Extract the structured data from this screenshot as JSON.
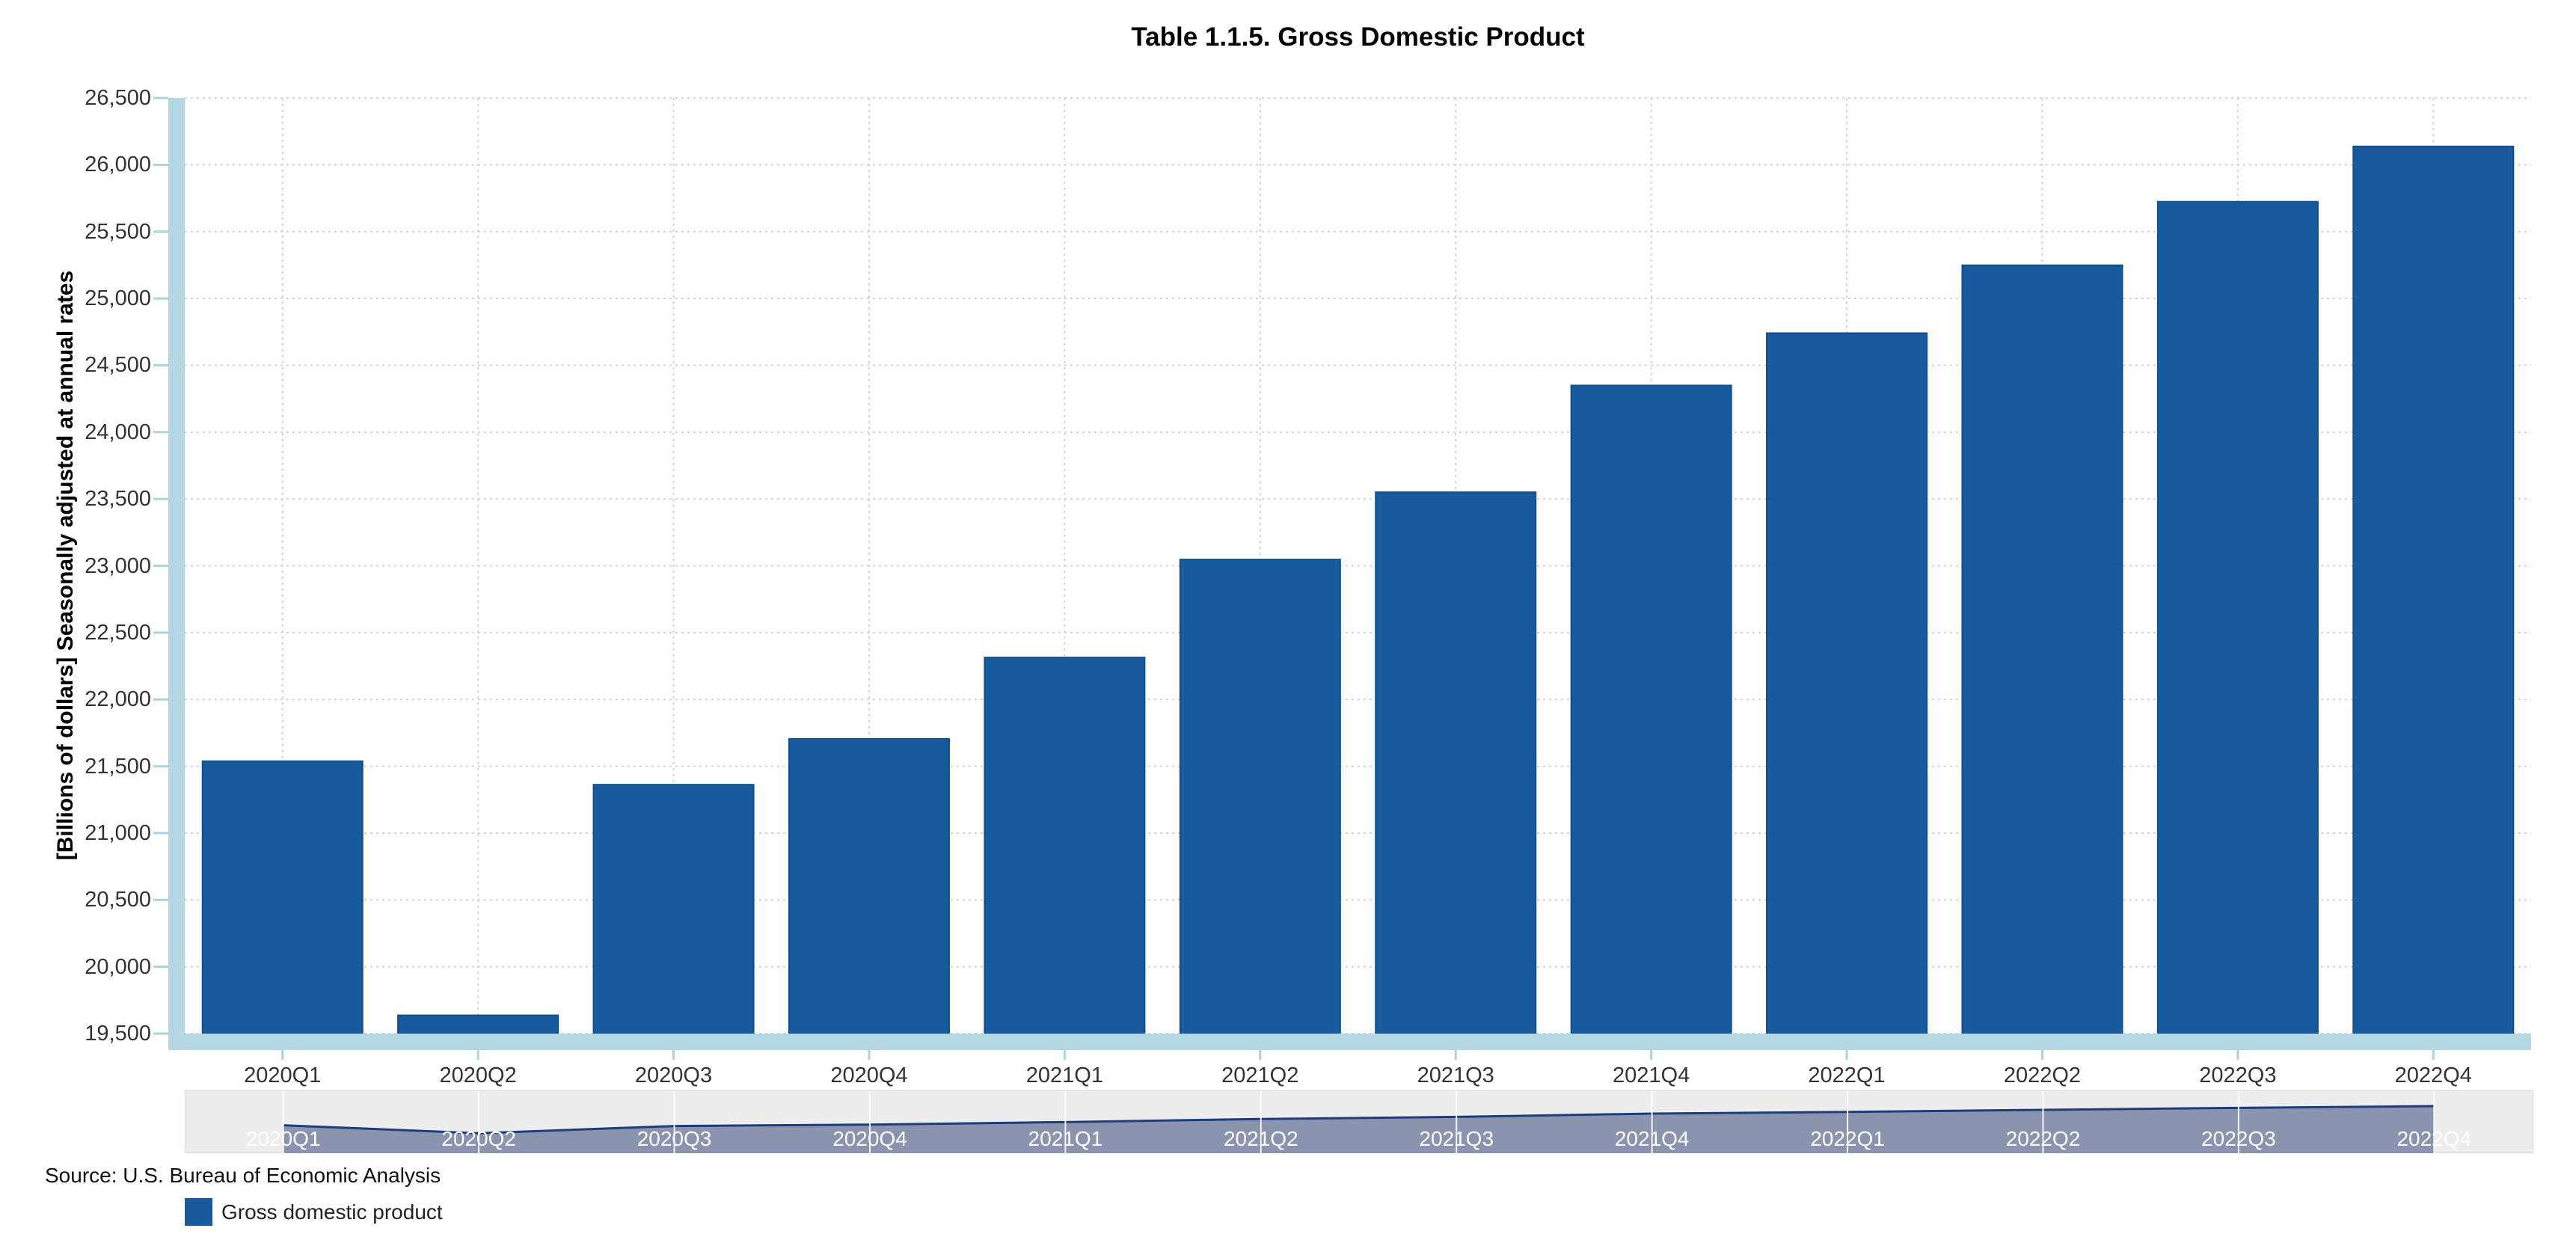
{
  "title": "Table 1.1.5. Gross Domestic Product",
  "y_axis": {
    "title": "[Billions of dollars] Seasonally adjusted at annual rates",
    "min": 19500,
    "max": 26500,
    "step": 500,
    "tick_labels": [
      "19,500",
      "20,000",
      "20,500",
      "21,000",
      "21,500",
      "22,000",
      "22,500",
      "23,000",
      "23,500",
      "24,000",
      "24,500",
      "25,000",
      "25,500",
      "26,000",
      "26,500"
    ]
  },
  "chart_data": {
    "type": "bar",
    "title": "Table 1.1.5. Gross Domestic Product",
    "xlabel": "",
    "ylabel": "[Billions of dollars] Seasonally adjusted at annual rates",
    "ylim": [
      19500,
      26500
    ],
    "grid": true,
    "legend_position": "bottom-left",
    "categories": [
      "2020Q1",
      "2020Q2",
      "2020Q3",
      "2020Q4",
      "2021Q1",
      "2021Q2",
      "2021Q3",
      "2021Q4",
      "2022Q1",
      "2022Q2",
      "2022Q3",
      "2022Q4"
    ],
    "series": [
      {
        "name": "Gross domestic product",
        "values": [
          21538.0,
          19636.7,
          21362.4,
          21704.7,
          22313.9,
          23046.9,
          23550.4,
          24349.1,
          24740.5,
          25248.5,
          25723.9,
          26137.5
        ]
      }
    ]
  },
  "navigator": {
    "labels": [
      "2020Q1",
      "2020Q2",
      "2020Q3",
      "2020Q4",
      "2021Q1",
      "2021Q2",
      "2021Q3",
      "2021Q4",
      "2022Q1",
      "2022Q2",
      "2022Q3",
      "2022Q4"
    ]
  },
  "source_text": "Source: U.S. Bureau of Economic Analysis",
  "legend": {
    "label": "Gross domestic product"
  },
  "colors": {
    "bar_fill": "#175a9d",
    "bar_border": "#114e8b",
    "scrollbar": "#b3d7e3",
    "axis_tick": "#a9d2e2",
    "gridline": "#d3d3d3",
    "nav_background": "#ededed",
    "nav_area_fill": "#8b94af",
    "nav_line": "#1e3d7d",
    "nav_gridline": "#ffffff",
    "nav_label_text": "#ffffff",
    "tick_label_text": "#333333",
    "title_text": "#000000"
  }
}
